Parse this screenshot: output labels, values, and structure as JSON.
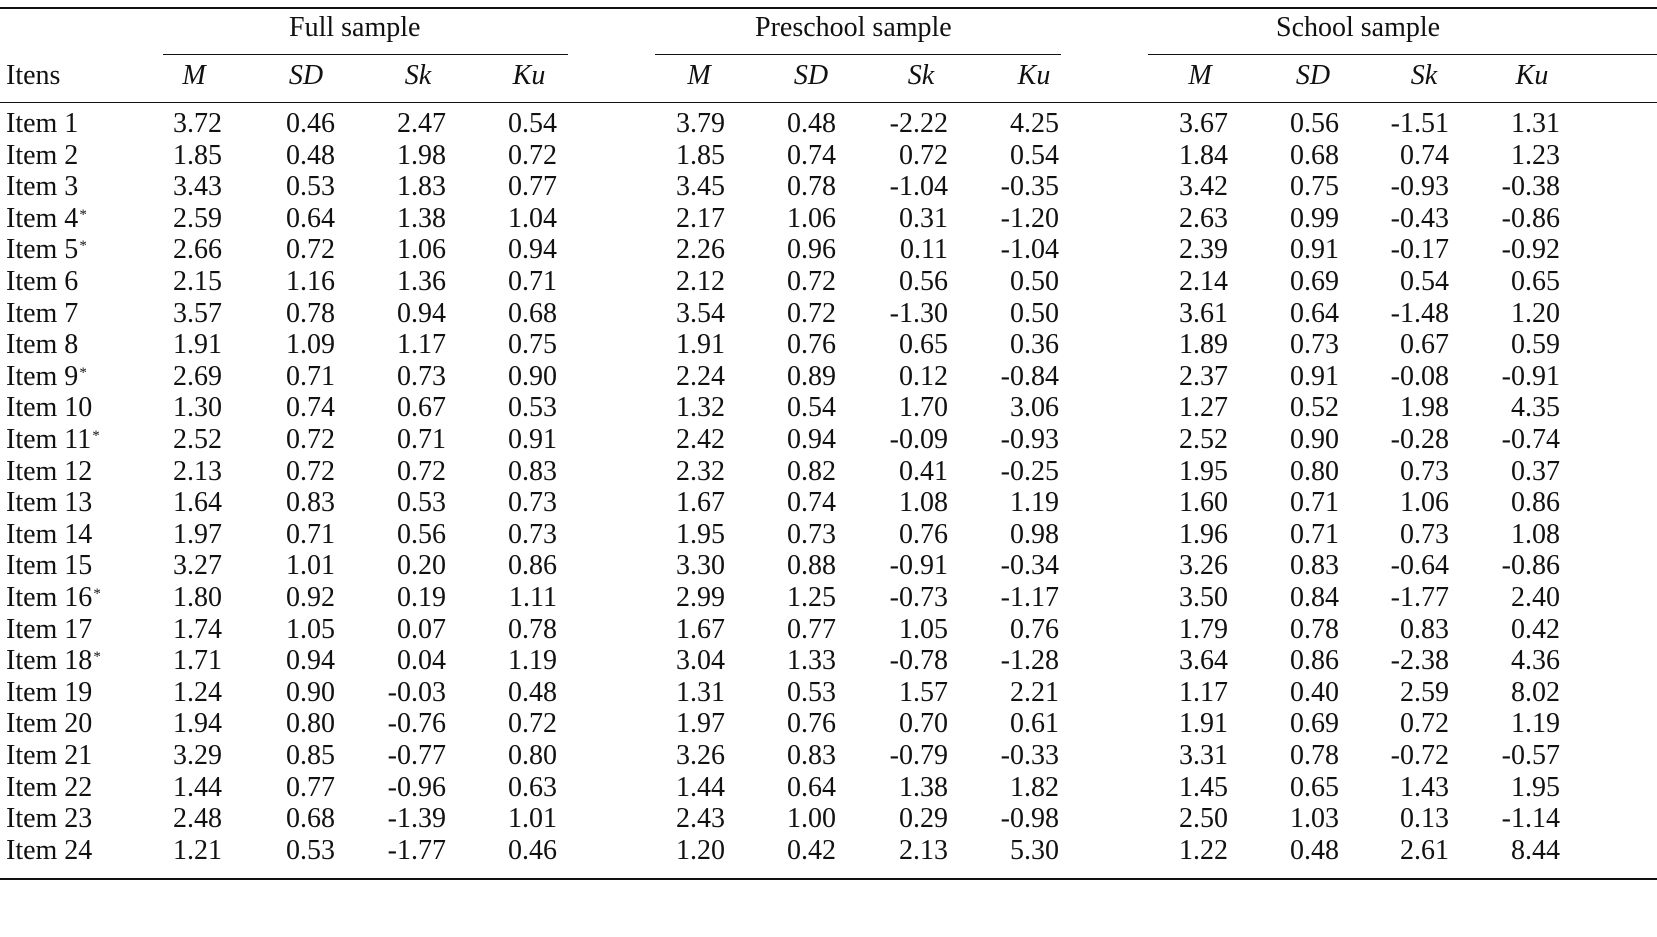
{
  "table": {
    "row_header_label": "Itens",
    "groups": [
      {
        "title": "Full sample"
      },
      {
        "title": "Preschool sample"
      },
      {
        "title": "School sample"
      }
    ],
    "stat_labels": [
      "M",
      "SD",
      "Sk",
      "Ku"
    ],
    "rows": [
      {
        "label": "Item 1",
        "star": "",
        "full": [
          "3.72",
          "0.46",
          "2.47",
          "0.54"
        ],
        "preschool": [
          "3.79",
          "0.48",
          "-2.22",
          "4.25"
        ],
        "school": [
          "3.67",
          "0.56",
          "-1.51",
          "1.31"
        ]
      },
      {
        "label": "Item 2",
        "star": "",
        "full": [
          "1.85",
          "0.48",
          "1.98",
          "0.72"
        ],
        "preschool": [
          "1.85",
          "0.74",
          "0.72",
          "0.54"
        ],
        "school": [
          "1.84",
          "0.68",
          "0.74",
          "1.23"
        ]
      },
      {
        "label": "Item 3",
        "star": "",
        "full": [
          "3.43",
          "0.53",
          "1.83",
          "0.77"
        ],
        "preschool": [
          "3.45",
          "0.78",
          "-1.04",
          "-0.35"
        ],
        "school": [
          "3.42",
          "0.75",
          "-0.93",
          "-0.38"
        ]
      },
      {
        "label": "Item 4",
        "star": "*",
        "full": [
          "2.59",
          "0.64",
          "1.38",
          "1.04"
        ],
        "preschool": [
          "2.17",
          "1.06",
          "0.31",
          "-1.20"
        ],
        "school": [
          "2.63",
          "0.99",
          "-0.43",
          "-0.86"
        ]
      },
      {
        "label": "Item 5",
        "star": "*",
        "full": [
          "2.66",
          "0.72",
          "1.06",
          "0.94"
        ],
        "preschool": [
          "2.26",
          "0.96",
          "0.11",
          "-1.04"
        ],
        "school": [
          "2.39",
          "0.91",
          "-0.17",
          "-0.92"
        ]
      },
      {
        "label": "Item 6",
        "star": "",
        "full": [
          "2.15",
          "1.16",
          "1.36",
          "0.71"
        ],
        "preschool": [
          "2.12",
          "0.72",
          "0.56",
          "0.50"
        ],
        "school": [
          "2.14",
          "0.69",
          "0.54",
          "0.65"
        ]
      },
      {
        "label": "Item 7",
        "star": "",
        "full": [
          "3.57",
          "0.78",
          "0.94",
          "0.68"
        ],
        "preschool": [
          "3.54",
          "0.72",
          "-1.30",
          "0.50"
        ],
        "school": [
          "3.61",
          "0.64",
          "-1.48",
          "1.20"
        ]
      },
      {
        "label": "Item 8",
        "star": "",
        "full": [
          "1.91",
          "1.09",
          "1.17",
          "0.75"
        ],
        "preschool": [
          "1.91",
          "0.76",
          "0.65",
          "0.36"
        ],
        "school": [
          "1.89",
          "0.73",
          "0.67",
          "0.59"
        ]
      },
      {
        "label": "Item 9",
        "star": "*",
        "full": [
          "2.69",
          "0.71",
          "0.73",
          "0.90"
        ],
        "preschool": [
          "2.24",
          "0.89",
          "0.12",
          "-0.84"
        ],
        "school": [
          "2.37",
          "0.91",
          "-0.08",
          "-0.91"
        ]
      },
      {
        "label": "Item 10",
        "star": "",
        "full": [
          "1.30",
          "0.74",
          "0.67",
          "0.53"
        ],
        "preschool": [
          "1.32",
          "0.54",
          "1.70",
          "3.06"
        ],
        "school": [
          "1.27",
          "0.52",
          "1.98",
          "4.35"
        ]
      },
      {
        "label": "Item 11",
        "star": "*",
        "full": [
          "2.52",
          "0.72",
          "0.71",
          "0.91"
        ],
        "preschool": [
          "2.42",
          "0.94",
          "-0.09",
          "-0.93"
        ],
        "school": [
          "2.52",
          "0.90",
          "-0.28",
          "-0.74"
        ]
      },
      {
        "label": "Item 12",
        "star": "",
        "full": [
          "2.13",
          "0.72",
          "0.72",
          "0.83"
        ],
        "preschool": [
          "2.32",
          "0.82",
          "0.41",
          "-0.25"
        ],
        "school": [
          "1.95",
          "0.80",
          "0.73",
          "0.37"
        ]
      },
      {
        "label": "Item 13",
        "star": "",
        "full": [
          "1.64",
          "0.83",
          "0.53",
          "0.73"
        ],
        "preschool": [
          "1.67",
          "0.74",
          "1.08",
          "1.19"
        ],
        "school": [
          "1.60",
          "0.71",
          "1.06",
          "0.86"
        ]
      },
      {
        "label": "Item 14",
        "star": "",
        "full": [
          "1.97",
          "0.71",
          "0.56",
          "0.73"
        ],
        "preschool": [
          "1.95",
          "0.73",
          "0.76",
          "0.98"
        ],
        "school": [
          "1.96",
          "0.71",
          "0.73",
          "1.08"
        ]
      },
      {
        "label": "Item 15",
        "star": "",
        "full": [
          "3.27",
          "1.01",
          "0.20",
          "0.86"
        ],
        "preschool": [
          "3.30",
          "0.88",
          "-0.91",
          "-0.34"
        ],
        "school": [
          "3.26",
          "0.83",
          "-0.64",
          "-0.86"
        ]
      },
      {
        "label": "Item 16",
        "star": "*",
        "full": [
          "1.80",
          "0.92",
          "0.19",
          "1.11"
        ],
        "preschool": [
          "2.99",
          "1.25",
          "-0.73",
          "-1.17"
        ],
        "school": [
          "3.50",
          "0.84",
          "-1.77",
          "2.40"
        ]
      },
      {
        "label": "Item 17",
        "star": "",
        "full": [
          "1.74",
          "1.05",
          "0.07",
          "0.78"
        ],
        "preschool": [
          "1.67",
          "0.77",
          "1.05",
          "0.76"
        ],
        "school": [
          "1.79",
          "0.78",
          "0.83",
          "0.42"
        ]
      },
      {
        "label": "Item 18",
        "star": "*",
        "full": [
          "1.71",
          "0.94",
          "0.04",
          "1.19"
        ],
        "preschool": [
          "3.04",
          "1.33",
          "-0.78",
          "-1.28"
        ],
        "school": [
          "3.64",
          "0.86",
          "-2.38",
          "4.36"
        ]
      },
      {
        "label": "Item 19",
        "star": "",
        "full": [
          "1.24",
          "0.90",
          "-0.03",
          "0.48"
        ],
        "preschool": [
          "1.31",
          "0.53",
          "1.57",
          "2.21"
        ],
        "school": [
          "1.17",
          "0.40",
          "2.59",
          "8.02"
        ]
      },
      {
        "label": "Item 20",
        "star": "",
        "full": [
          "1.94",
          "0.80",
          "-0.76",
          "0.72"
        ],
        "preschool": [
          "1.97",
          "0.76",
          "0.70",
          "0.61"
        ],
        "school": [
          "1.91",
          "0.69",
          "0.72",
          "1.19"
        ]
      },
      {
        "label": "Item 21",
        "star": "",
        "full": [
          "3.29",
          "0.85",
          "-0.77",
          "0.80"
        ],
        "preschool": [
          "3.26",
          "0.83",
          "-0.79",
          "-0.33"
        ],
        "school": [
          "3.31",
          "0.78",
          "-0.72",
          "-0.57"
        ]
      },
      {
        "label": "Item 22",
        "star": "",
        "full": [
          "1.44",
          "0.77",
          "-0.96",
          "0.63"
        ],
        "preschool": [
          "1.44",
          "0.64",
          "1.38",
          "1.82"
        ],
        "school": [
          "1.45",
          "0.65",
          "1.43",
          "1.95"
        ]
      },
      {
        "label": "Item 23",
        "star": "",
        "full": [
          "2.48",
          "0.68",
          "-1.39",
          "1.01"
        ],
        "preschool": [
          "2.43",
          "1.00",
          "0.29",
          "-0.98"
        ],
        "school": [
          "2.50",
          "1.03",
          "0.13",
          "-1.14"
        ]
      },
      {
        "label": "Item 24",
        "star": "",
        "full": [
          "1.21",
          "0.53",
          "-1.77",
          "0.46"
        ],
        "preschool": [
          "1.20",
          "0.42",
          "2.13",
          "5.30"
        ],
        "school": [
          "1.22",
          "0.48",
          "2.61",
          "8.44"
        ]
      }
    ]
  }
}
